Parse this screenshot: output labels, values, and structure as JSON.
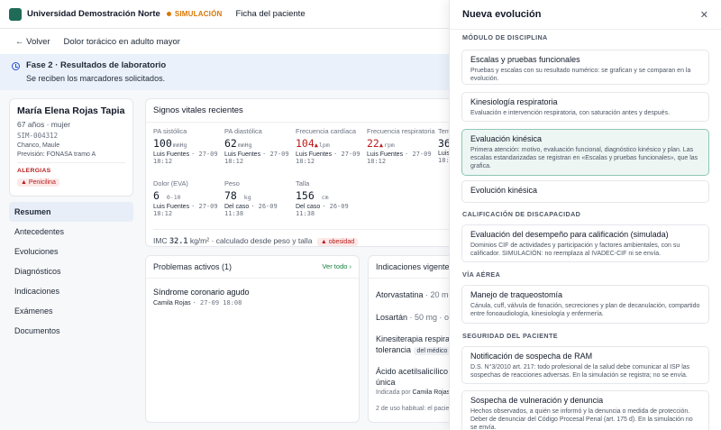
{
  "topbar": {
    "university": "Universidad Demostración Norte",
    "simulation": "SIMULACIÓN",
    "page": "Ficha del paciente"
  },
  "subheader": {
    "back": "← Volver",
    "case_title": "Dolor torácico en adulto mayor"
  },
  "phase": {
    "title": "Fase 2 · Resultados de laboratorio",
    "desc": "Se reciben los marcadores solicitados."
  },
  "patient": {
    "name": "María Elena Rojas Tapia",
    "age_sex": "67 años · mujer",
    "id": "SIM-004312",
    "location": "Chanco, Maule",
    "insurance": "Previsión: FONASA tramo A",
    "allergies_label": "ALERGIAS",
    "allergy": "▲ Penicilina"
  },
  "nav": [
    "Resumen",
    "Antecedentes",
    "Evoluciones",
    "Diagnósticos",
    "Indicaciones",
    "Exámenes",
    "Documentos"
  ],
  "vitals": {
    "title": "Signos vitales recientes",
    "items": [
      {
        "label": "PA sistólica",
        "value": "100",
        "unit": "mmHg",
        "by": "Luis Fuentes",
        "date": "· 27-09",
        "time": "18:12"
      },
      {
        "label": "PA diastólica",
        "value": "62",
        "unit": "mmHg",
        "by": "Luis Fuentes",
        "date": "· 27-09",
        "time": "18:12"
      },
      {
        "label": "Frecuencia cardíaca",
        "value": "104",
        "flag": "▲",
        "unit": "lpm",
        "by": "Luis Fuentes",
        "date": "· 27-09",
        "time": "18:12"
      },
      {
        "label": "Frecuencia respiratoria",
        "value": "22",
        "flag": "▲",
        "unit": "rpm",
        "by": "Luis Fuentes",
        "date": "· 27-09",
        "time": "18:12"
      },
      {
        "label": "Tem",
        "value": "36",
        "unit": "",
        "by": "Luis",
        "date": "",
        "time": "18:1"
      },
      {
        "label": "Dolor (EVA)",
        "value": "6",
        "unit": "0-10",
        "by": "Luis Fuentes",
        "date": "· 27-09",
        "time": "18:12"
      },
      {
        "label": "Peso",
        "value": "78",
        "unit": "kg",
        "by": "Del caso",
        "date": "· 26-09",
        "time": "11:38"
      },
      {
        "label": "Talla",
        "value": "156",
        "unit": "cm",
        "by": "Del caso",
        "date": "· 26-09",
        "time": "11:38"
      }
    ],
    "imc_label": "IMC",
    "imc_value": "32.1",
    "imc_unit": "kg/m²",
    "imc_note": "· calculado desde peso y talla",
    "imc_badge": "▲ obesidad"
  },
  "problems": {
    "title": "Problemas activos (1)",
    "link": "Ver todo ›",
    "items": [
      {
        "name": "Síndrome coronario agudo",
        "by": "Camila Rojas",
        "date": "· 27-09 18:08"
      }
    ]
  },
  "indications": {
    "title": "Indicaciones vigentes",
    "i1_name": "Atorvastatina",
    "i1_dose": "· 20 mg",
    "i2_name": "Losartán",
    "i2_dose": "· 50 mg · ora",
    "i3_name": "Kinesiterapia respirato",
    "i3_name2": "tolerancia",
    "i3_tag": "del médico",
    "i4_name": "Ácido acetilsalicílico",
    "i4_name2": "única",
    "i4_by_label": "Indicada por",
    "i4_by": "Camila Rojas",
    "footer": "2 de uso habitual: el pacie"
  },
  "drawer": {
    "title": "Nueva evolución",
    "close": "✕",
    "sec1": "MÓDULO DE DISCIPLINA",
    "o1_t": "Escalas y pruebas funcionales",
    "o1_d": "Pruebas y escalas con su resultado numérico: se grafican y se comparan en la evolución.",
    "o2_t": "Kinesiología respiratoria",
    "o2_d": "Evaluación e intervención respiratoria, con saturación antes y después.",
    "o3_t": "Evaluación kinésica",
    "o3_d": "Primera atención: motivo, evaluación funcional, diagnóstico kinésico y plan. Las escalas estandarizadas se registran en «Escalas y pruebas funcionales», que las grafica.",
    "o4_t": "Evolución kinésica",
    "sec2": "CALIFICACIÓN DE DISCAPACIDAD",
    "o5_t": "Evaluación del desempeño para calificación (simulada)",
    "o5_d": "Dominios CIF de actividades y participación y factores ambientales, con su calificador. SIMULACIÓN: no reemplaza al IVADEC-CIF ni se envía.",
    "sec3": "VÍA AÉREA",
    "o6_t": "Manejo de traqueostomía",
    "o6_d": "Cánula, cuff, válvula de fonación, secreciones y plan de decanulación, compartido entre fonoaudiología, kinesiología y enfermería.",
    "sec4": "SEGURIDAD DEL PACIENTE",
    "o7_t": "Notificación de sospecha de RAM",
    "o7_d": "D.S. N°3/2010 art. 217: todo profesional de la salud debe comunicar al ISP las sospechas de reacciones adversas. En la simulación se registra; no se envía.",
    "o8_t": "Sospecha de vulneración y denuncia",
    "o8_d": "Hechos observados, a quién se informó y la denuncia o medida de protección. Deber de denunciar del Código Procesal Penal (art. 175 d). En la simulación no se envía."
  },
  "colors": {
    "brand": "#1f6b57",
    "warning": "#d97706",
    "alert": "#b91c1c",
    "info_bg": "#eaf1fb",
    "selected_bg": "#eef6f4"
  }
}
